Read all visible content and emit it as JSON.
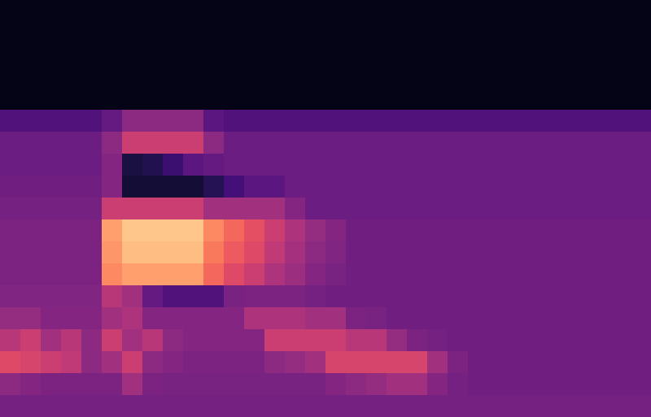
{
  "chart_data": {
    "type": "heatmap",
    "color": "magma",
    "tick_labels": false,
    "color_range": [
      0,
      100
    ],
    "cells": [
      [
        4,
        4,
        4,
        4,
        4,
        4,
        4,
        4,
        4,
        4,
        4,
        4,
        4,
        4,
        4,
        4,
        4,
        4,
        4,
        4,
        4,
        4,
        4,
        4,
        4,
        4,
        4,
        4,
        4,
        4,
        4,
        4
      ],
      [
        4,
        4,
        4,
        4,
        4,
        4,
        4,
        4,
        4,
        4,
        4,
        4,
        4,
        4,
        4,
        4,
        4,
        4,
        4,
        4,
        4,
        4,
        4,
        4,
        4,
        4,
        4,
        4,
        4,
        4,
        4,
        4
      ],
      [
        4,
        4,
        4,
        4,
        4,
        4,
        4,
        4,
        4,
        4,
        4,
        4,
        4,
        4,
        4,
        4,
        4,
        4,
        4,
        4,
        4,
        4,
        4,
        4,
        4,
        4,
        4,
        4,
        4,
        4,
        4,
        4
      ],
      [
        4,
        4,
        4,
        4,
        4,
        4,
        4,
        4,
        4,
        4,
        4,
        4,
        4,
        4,
        4,
        4,
        4,
        4,
        4,
        4,
        4,
        4,
        4,
        4,
        4,
        4,
        4,
        4,
        4,
        4,
        4,
        4
      ],
      [
        4,
        4,
        4,
        4,
        4,
        4,
        4,
        4,
        4,
        4,
        4,
        4,
        4,
        4,
        4,
        4,
        4,
        4,
        4,
        4,
        4,
        4,
        4,
        4,
        4,
        4,
        4,
        4,
        4,
        4,
        4,
        4
      ],
      [
        25,
        25,
        25,
        25,
        25,
        30,
        40,
        40,
        40,
        40,
        28,
        25,
        25,
        25,
        25,
        25,
        25,
        25,
        25,
        25,
        25,
        25,
        25,
        25,
        25,
        25,
        25,
        25,
        25,
        25,
        25,
        25
      ],
      [
        32,
        32,
        32,
        32,
        32,
        40,
        55,
        55,
        55,
        55,
        40,
        32,
        32,
        32,
        32,
        32,
        32,
        32,
        32,
        32,
        32,
        32,
        32,
        32,
        32,
        32,
        32,
        32,
        32,
        32,
        32,
        32
      ],
      [
        32,
        32,
        32,
        32,
        32,
        38,
        12,
        14,
        20,
        28,
        30,
        32,
        32,
        32,
        32,
        32,
        32,
        32,
        32,
        32,
        32,
        32,
        32,
        32,
        32,
        32,
        32,
        32,
        32,
        32,
        32,
        32
      ],
      [
        33,
        33,
        33,
        33,
        33,
        38,
        10,
        10,
        10,
        10,
        15,
        22,
        28,
        28,
        32,
        32,
        32,
        32,
        32,
        32,
        32,
        32,
        32,
        32,
        32,
        32,
        32,
        32,
        32,
        32,
        32,
        32
      ],
      [
        34,
        34,
        34,
        34,
        34,
        55,
        55,
        55,
        55,
        55,
        45,
        45,
        45,
        45,
        38,
        32,
        32,
        32,
        32,
        32,
        32,
        32,
        32,
        32,
        32,
        32,
        32,
        32,
        32,
        32,
        32,
        32
      ],
      [
        36,
        36,
        36,
        36,
        36,
        80,
        88,
        88,
        88,
        88,
        75,
        68,
        62,
        55,
        48,
        42,
        38,
        33,
        33,
        33,
        33,
        33,
        33,
        33,
        33,
        33,
        33,
        33,
        33,
        33,
        33,
        33
      ],
      [
        36,
        36,
        36,
        36,
        36,
        78,
        86,
        86,
        86,
        86,
        72,
        65,
        60,
        52,
        46,
        40,
        37,
        33,
        33,
        33,
        33,
        33,
        33,
        33,
        33,
        33,
        33,
        33,
        33,
        33,
        33,
        33
      ],
      [
        36,
        36,
        36,
        36,
        36,
        75,
        80,
        80,
        80,
        80,
        68,
        60,
        55,
        48,
        44,
        38,
        35,
        33,
        33,
        33,
        33,
        33,
        33,
        33,
        33,
        33,
        33,
        33,
        33,
        33,
        33,
        33
      ],
      [
        37,
        37,
        37,
        37,
        37,
        50,
        45,
        30,
        25,
        25,
        25,
        35,
        36,
        36,
        36,
        34,
        33,
        33,
        33,
        33,
        33,
        33,
        33,
        33,
        33,
        33,
        33,
        33,
        33,
        33,
        33,
        33
      ],
      [
        42,
        42,
        38,
        38,
        38,
        45,
        48,
        38,
        38,
        38,
        38,
        38,
        48,
        48,
        48,
        45,
        45,
        36,
        35,
        33,
        33,
        33,
        33,
        33,
        33,
        33,
        33,
        33,
        33,
        33,
        33,
        33
      ],
      [
        50,
        55,
        45,
        50,
        40,
        55,
        45,
        50,
        40,
        38,
        38,
        38,
        38,
        55,
        55,
        55,
        55,
        50,
        50,
        42,
        36,
        34,
        33,
        33,
        33,
        33,
        33,
        33,
        33,
        33,
        33,
        33
      ],
      [
        60,
        58,
        55,
        52,
        40,
        45,
        55,
        40,
        38,
        36,
        36,
        36,
        36,
        40,
        42,
        45,
        58,
        58,
        58,
        58,
        58,
        45,
        36,
        33,
        33,
        33,
        33,
        33,
        33,
        33,
        33,
        33
      ],
      [
        40,
        38,
        36,
        36,
        36,
        36,
        45,
        36,
        35,
        35,
        35,
        35,
        35,
        35,
        35,
        35,
        38,
        40,
        42,
        45,
        45,
        38,
        34,
        33,
        33,
        33,
        33,
        33,
        33,
        33,
        33,
        33
      ],
      [
        34,
        34,
        34,
        34,
        34,
        34,
        34,
        34,
        34,
        34,
        34,
        34,
        34,
        34,
        34,
        34,
        34,
        34,
        34,
        34,
        34,
        34,
        34,
        34,
        34,
        34,
        34,
        34,
        34,
        34,
        34,
        34
      ]
    ]
  }
}
